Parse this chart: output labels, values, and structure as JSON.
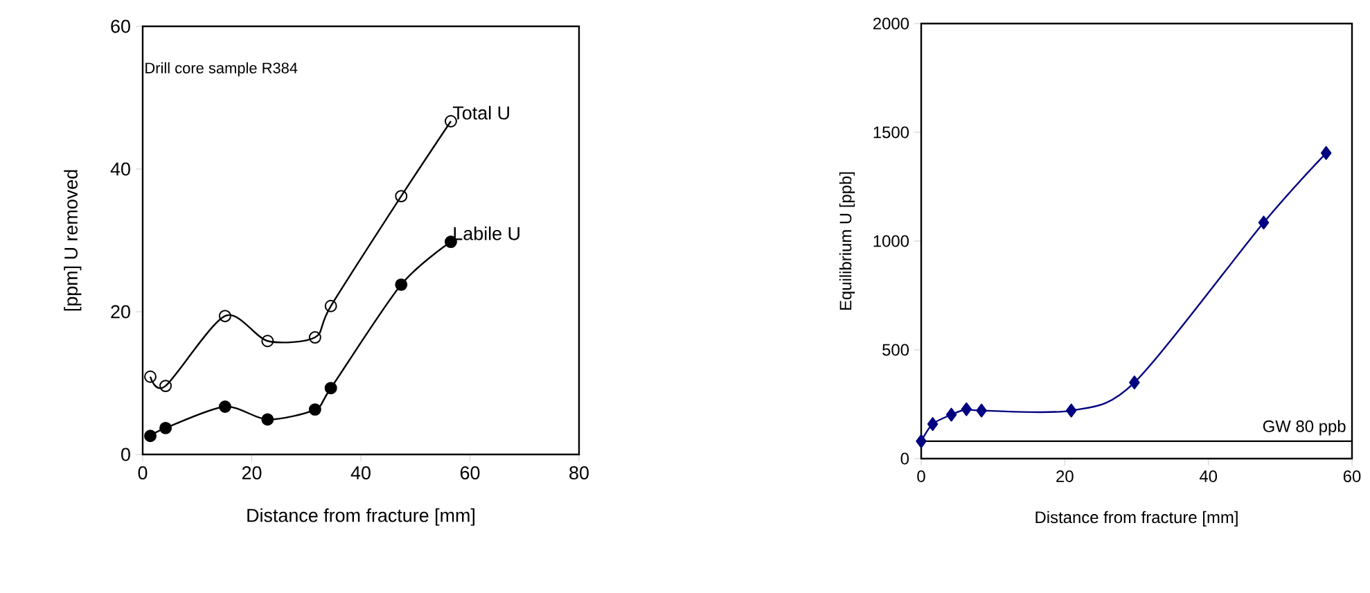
{
  "chart_data": [
    {
      "type": "line",
      "xlabel": "Distance from fracture [mm]",
      "ylabel": "[ppm] U removed",
      "xlim": [
        0,
        80
      ],
      "ylim": [
        0,
        60
      ],
      "xticks": [
        0,
        20,
        40,
        60,
        80
      ],
      "yticks": [
        0,
        20,
        40,
        60
      ],
      "marker": "open circle",
      "grid": false,
      "annotations": [
        "Drill core sample R384"
      ],
      "series": [
        {
          "name": "Total U",
          "color": "#000000",
          "x": [
            1.4,
            4.2,
            15.1,
            22.9,
            31.6,
            34.5,
            47.4,
            56.5
          ],
          "values": [
            10.9,
            9.6,
            19.4,
            15.9,
            16.4,
            20.8,
            36.2,
            46.7
          ]
        },
        {
          "name": "Labile U",
          "color": "#000000",
          "marker": "circle",
          "x": [
            1.4,
            4.2,
            15.1,
            22.9,
            31.6,
            34.5,
            47.4,
            56.5
          ],
          "values": [
            2.6,
            3.7,
            6.7,
            4.9,
            6.3,
            9.3,
            23.8,
            29.8
          ]
        }
      ]
    },
    {
      "type": "line",
      "xlabel": "Distance from fracture [mm]",
      "ylabel": "Equilibrium U [ppb]",
      "xlim": [
        0,
        60
      ],
      "ylim": [
        0,
        2000
      ],
      "xticks": [
        0,
        20,
        40,
        60
      ],
      "yticks": [
        0,
        500,
        1000,
        1500,
        2000
      ],
      "marker": "diamond",
      "grid": false,
      "ref_lines": [
        {
          "axis": "y",
          "value": 80,
          "label": "GW 80 ppb",
          "color": "#000000"
        }
      ],
      "series": [
        {
          "color": "#000080",
          "x": [
            0,
            1.6,
            4.2,
            6.3,
            8.4,
            20.9,
            29.7,
            47.7,
            56.4
          ],
          "values": [
            80,
            159,
            202,
            227,
            221,
            221,
            350,
            1085,
            1405
          ]
        }
      ]
    }
  ]
}
